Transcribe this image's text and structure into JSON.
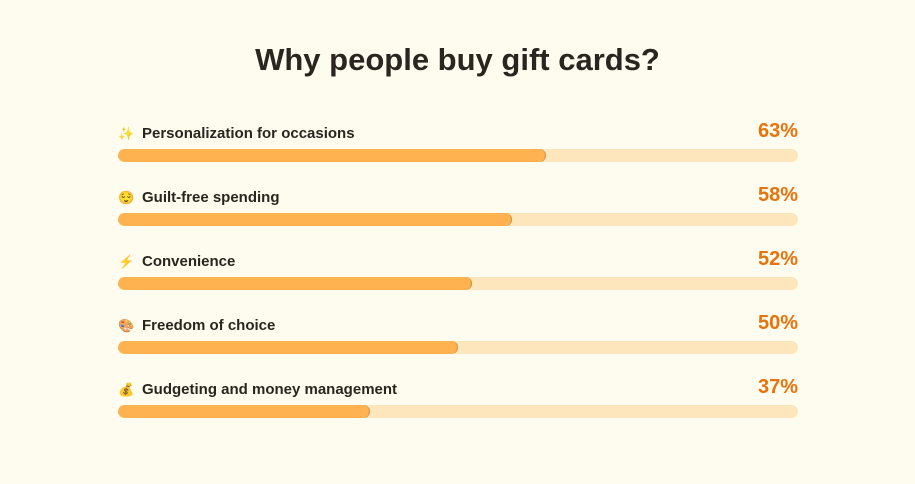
{
  "chart_data": {
    "type": "bar",
    "orientation": "horizontal",
    "title": "Why people buy gift cards?",
    "xlim": [
      0,
      100
    ],
    "grid": false,
    "colors": {
      "fill": "#ffb24f",
      "track": "#fde6bc",
      "value_label": "#e8720c"
    },
    "items": [
      {
        "icon": "✨",
        "icon_name": "sparkles-icon",
        "label": "Personalization for occasions",
        "value": 63,
        "value_label": "63%"
      },
      {
        "icon": "😌",
        "icon_name": "relieved-face-icon",
        "label": "Guilt-free spending",
        "value": 58,
        "value_label": "58%"
      },
      {
        "icon": "⚡",
        "icon_name": "lightning-icon",
        "label": "Convenience",
        "value": 52,
        "value_label": "52%"
      },
      {
        "icon": "🎨",
        "icon_name": "palette-icon",
        "label": "Freedom of choice",
        "value": 50,
        "value_label": "50%"
      },
      {
        "icon": "💰",
        "icon_name": "money-bag-icon",
        "label": "Gudgeting and money management",
        "value": 37,
        "value_label": "37%"
      }
    ]
  }
}
